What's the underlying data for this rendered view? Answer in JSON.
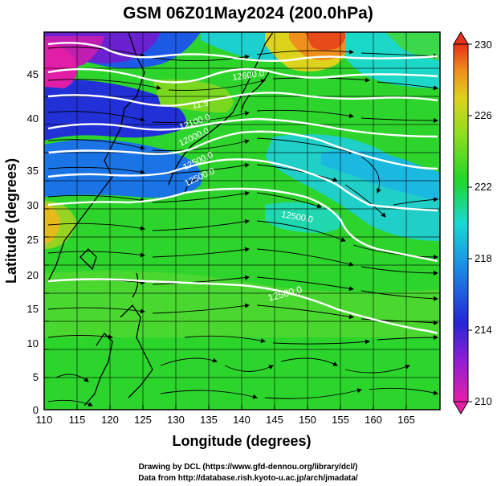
{
  "title": "GSM 06Z01May2024 (200.0hPa)",
  "x_axis": {
    "label": "Longitude (degrees)",
    "range": [
      110,
      170
    ],
    "ticks": [
      "110",
      "115",
      "120",
      "125",
      "130",
      "135",
      "140",
      "145",
      "150",
      "155",
      "160",
      "165"
    ]
  },
  "y_axis": {
    "label": "Latitude (degrees)",
    "range": [
      0,
      50
    ],
    "ticks": [
      "0",
      "5",
      "10",
      "15",
      "20",
      "25",
      "30",
      "35",
      "40",
      "45"
    ]
  },
  "colorbar": {
    "range": [
      210,
      230
    ],
    "ticks": [
      "210",
      "214",
      "218",
      "222",
      "226",
      "230"
    ]
  },
  "contour_labels": [
    "11.5",
    "12600.0",
    "12100.0",
    "12000.0",
    "12500.0",
    "12500.0",
    "12500.0",
    "12500.0"
  ],
  "credits": {
    "line1": "Drawing by DCL (https://www.gfd-dennou.org/library/dcl/)",
    "line2": "Data from http://database.rish.kyoto-u.ac.jp/arch/jmadata/"
  },
  "colors": {
    "low": "#e81ea8",
    "blue": "#2626d6",
    "cyan": "#19d9d2",
    "green": "#21d62a",
    "yellow": "#ddd21c",
    "high": "#e8301a"
  }
}
